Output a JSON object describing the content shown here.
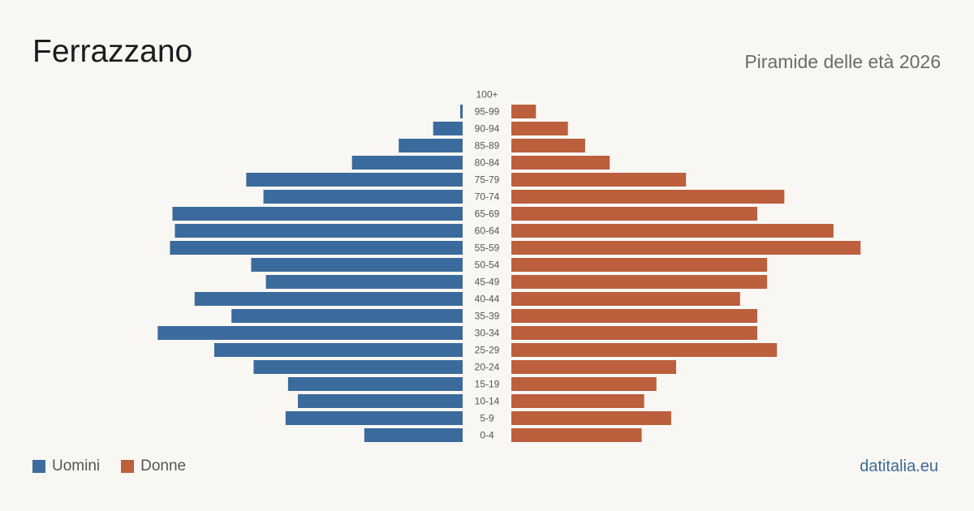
{
  "title": "Ferrazzano",
  "subtitle": "Piramide delle età 2026",
  "source": "datitalia.eu",
  "legend": {
    "men": "Uomini",
    "women": "Donne"
  },
  "colors": {
    "men": "#3b6b9c",
    "women": "#bc5f3d",
    "tick": "#555555",
    "background": "#f9f7f3"
  },
  "chart_data": {
    "type": "bar",
    "orientation": "horizontal-pyramid",
    "categories": [
      "100+",
      "95-99",
      "90-94",
      "85-89",
      "80-84",
      "75-79",
      "70-74",
      "65-69",
      "60-64",
      "55-59",
      "50-54",
      "45-49",
      "40-44",
      "35-39",
      "30-34",
      "25-29",
      "20-24",
      "15-19",
      "10-14",
      "5-9",
      "0-4"
    ],
    "series": [
      {
        "name": "Uomini",
        "values": [
          0,
          1,
          12,
          26,
          45,
          88,
          81,
          118,
          117,
          119,
          86,
          80,
          109,
          94,
          124,
          101,
          85,
          71,
          67,
          72,
          40
        ]
      },
      {
        "name": "Donne",
        "values": [
          0,
          10,
          23,
          30,
          40,
          71,
          111,
          100,
          131,
          142,
          104,
          104,
          93,
          100,
          100,
          108,
          67,
          59,
          54,
          65,
          53
        ]
      }
    ],
    "legend_position": "bottom-left",
    "grid": false
  }
}
